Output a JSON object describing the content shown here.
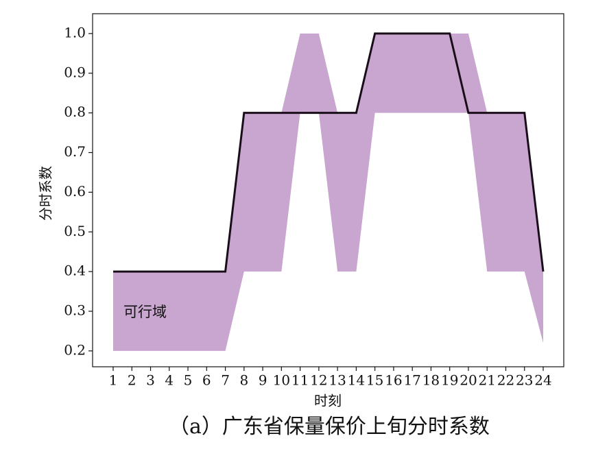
{
  "chart_data": {
    "type": "line",
    "caption": "（a）广东省保量保价上旬分时系数",
    "x_label": "时刻",
    "y_label": "分时系数",
    "annotation": "可行域",
    "x": [
      1,
      2,
      3,
      4,
      5,
      6,
      7,
      8,
      9,
      10,
      11,
      12,
      13,
      14,
      15,
      16,
      17,
      18,
      19,
      20,
      21,
      22,
      23,
      24
    ],
    "xlim": [
      -0.1,
      25.1
    ],
    "xticks": [
      1,
      2,
      3,
      4,
      5,
      6,
      7,
      8,
      9,
      10,
      11,
      12,
      13,
      14,
      15,
      16,
      17,
      18,
      19,
      20,
      21,
      22,
      23,
      24
    ],
    "ylim": [
      0.16,
      1.05
    ],
    "yticks": [
      0.2,
      0.3,
      0.4,
      0.5,
      0.6,
      0.7,
      0.8,
      0.9,
      {
        "value": 1.0,
        "label": "1.0"
      }
    ],
    "band": {
      "color": "#c9a6cf",
      "upper": [
        0.4,
        0.4,
        0.4,
        0.4,
        0.4,
        0.4,
        0.4,
        0.8,
        0.8,
        0.8,
        1.0,
        1.0,
        0.8,
        0.8,
        1.0,
        1.0,
        1.0,
        1.0,
        1.0,
        1.0,
        0.8,
        0.8,
        0.8,
        0.4
      ],
      "lower": [
        0.2,
        0.2,
        0.2,
        0.2,
        0.2,
        0.2,
        0.2,
        0.4,
        0.4,
        0.4,
        0.8,
        0.8,
        0.4,
        0.4,
        0.8,
        0.8,
        0.8,
        0.8,
        0.8,
        0.8,
        0.4,
        0.4,
        0.4,
        0.22
      ]
    },
    "series": [
      {
        "color": "#1a0d1a",
        "values": [
          0.4,
          0.4,
          0.4,
          0.4,
          0.4,
          0.4,
          0.4,
          0.8,
          0.8,
          0.8,
          0.8,
          0.8,
          0.8,
          0.8,
          1.0,
          1.0,
          1.0,
          1.0,
          1.0,
          0.8,
          0.8,
          0.8,
          0.8,
          0.4
        ]
      }
    ]
  }
}
